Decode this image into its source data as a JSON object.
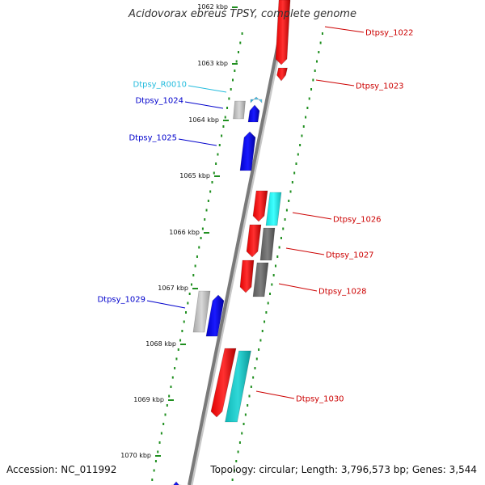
{
  "title": "Acidovorax ebreus TPSY, complete genome",
  "footer": {
    "accession": "Accession: NC_011992",
    "summary": "Topology: circular; Length: 3,796,573 bp; Genes: 3,544"
  },
  "colors": {
    "backbone": "#7a7a7a",
    "tick": "#1f8f1f",
    "forward_label": "#0000cc",
    "reverse_label": "#cc0000",
    "rna_label": "#22bbdd"
  },
  "ruler": {
    "unit": "kbp",
    "ticks": [
      "1062 kbp",
      "1063 kbp",
      "1064 kbp",
      "1065 kbp",
      "1066 kbp",
      "1067 kbp",
      "1068 kbp",
      "1069 kbp",
      "1070 kbp"
    ]
  },
  "genes": [
    {
      "label": "Dtpsy_1022",
      "strand": "reverse",
      "kind": "cds"
    },
    {
      "label": "Dtpsy_1023",
      "strand": "reverse",
      "kind": "cds"
    },
    {
      "label": "Dtpsy_R0010",
      "strand": "forward",
      "kind": "rna"
    },
    {
      "label": "Dtpsy_1024",
      "strand": "forward",
      "kind": "cds"
    },
    {
      "label": "Dtpsy_1025",
      "strand": "forward",
      "kind": "cds"
    },
    {
      "label": "Dtpsy_1026",
      "strand": "reverse",
      "kind": "cds"
    },
    {
      "label": "Dtpsy_1027",
      "strand": "reverse",
      "kind": "cds"
    },
    {
      "label": "Dtpsy_1028",
      "strand": "reverse",
      "kind": "cds"
    },
    {
      "label": "Dtpsy_1029",
      "strand": "forward",
      "kind": "cds"
    },
    {
      "label": "Dtpsy_1030",
      "strand": "reverse",
      "kind": "cds"
    }
  ]
}
